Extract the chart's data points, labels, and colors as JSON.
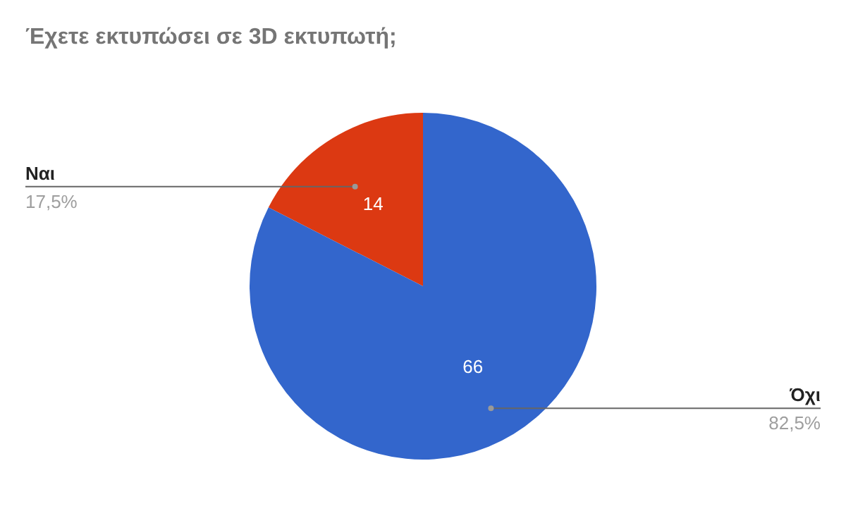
{
  "chart_data": {
    "type": "pie",
    "title": "Έχετε εκτυπώσει σε 3D εκτυπωτή;",
    "categories": [
      "Ναι",
      "Όχι"
    ],
    "values": [
      14,
      66
    ],
    "colors": [
      "#dc3912",
      "#3366cc"
    ],
    "data_labels": true,
    "annotations": [
      "17,5%",
      "82,5%"
    ],
    "legend": false
  }
}
